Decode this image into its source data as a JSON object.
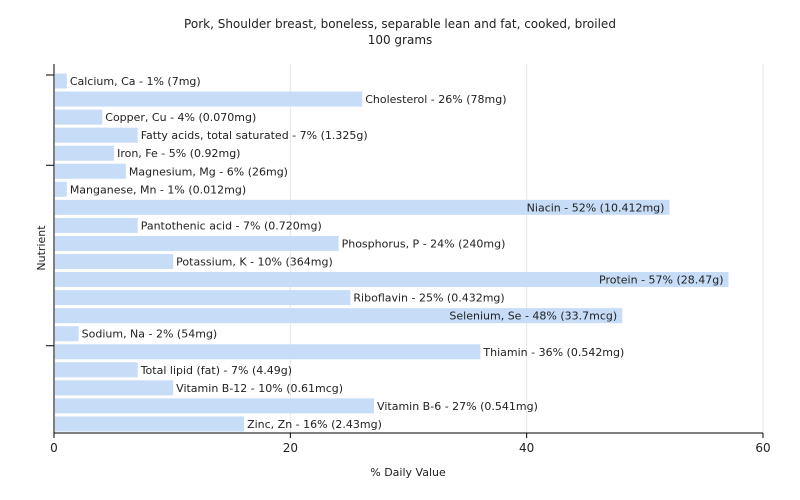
{
  "chart_data": {
    "type": "bar",
    "orientation": "horizontal",
    "title": "Pork, Shoulder breast, boneless, separable lean and fat, cooked, broiled",
    "subtitle": "100 grams",
    "xlabel": "% Daily Value",
    "ylabel": "Nutrient",
    "xlim": [
      0,
      60
    ],
    "xticks": [
      0,
      20,
      40,
      60
    ],
    "grid": true,
    "legend": "none",
    "bar_color": "#c6dcf7",
    "categories": [
      "Calcium, Ca",
      "Cholesterol",
      "Copper, Cu",
      "Fatty acids, total saturated",
      "Iron, Fe",
      "Magnesium, Mg",
      "Manganese, Mn",
      "Niacin",
      "Pantothenic acid",
      "Phosphorus, P",
      "Potassium, K",
      "Protein",
      "Riboflavin",
      "Selenium, Se",
      "Sodium, Na",
      "Thiamin",
      "Total lipid (fat)",
      "Vitamin B-12",
      "Vitamin B-6",
      "Zinc, Zn"
    ],
    "values": [
      1,
      26,
      4,
      7,
      5,
      6,
      1,
      52,
      7,
      24,
      10,
      57,
      25,
      48,
      2,
      36,
      7,
      10,
      27,
      16
    ],
    "labels": [
      "Calcium, Ca - 1% (7mg)",
      "Cholesterol - 26% (78mg)",
      "Copper, Cu - 4% (0.070mg)",
      "Fatty acids, total saturated - 7% (1.325g)",
      "Iron, Fe - 5% (0.92mg)",
      "Magnesium, Mg - 6% (26mg)",
      "Manganese, Mn - 1% (0.012mg)",
      "Niacin - 52% (10.412mg)",
      "Pantothenic acid - 7% (0.720mg)",
      "Phosphorus, P - 24% (240mg)",
      "Potassium, K - 10% (364mg)",
      "Protein - 57% (28.47g)",
      "Riboflavin - 25% (0.432mg)",
      "Selenium, Se - 48% (33.7mcg)",
      "Sodium, Na - 2% (54mg)",
      "Thiamin - 36% (0.542mg)",
      "Total lipid (fat) - 7% (4.49g)",
      "Vitamin B-12 - 10% (0.61mcg)",
      "Vitamin B-6 - 27% (0.541mg)",
      "Zinc, Zn - 16% (2.43mg)"
    ]
  }
}
